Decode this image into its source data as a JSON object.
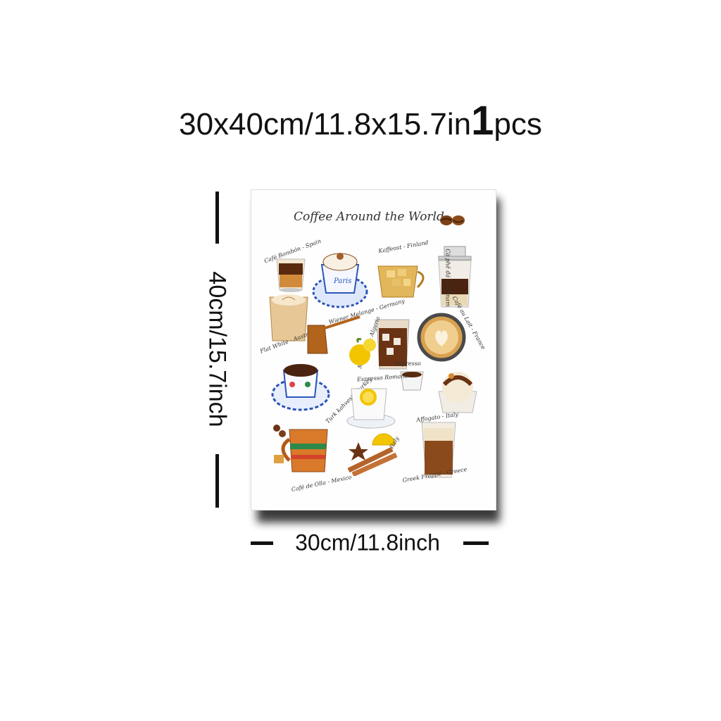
{
  "heading": {
    "size": "30x40cm/11.8x15.7in",
    "qty_number": "1",
    "qty_unit": "pcs"
  },
  "dimensions": {
    "height_label": "40cm/15.7inch",
    "width_label": "30cm/11.8inch"
  },
  "poster": {
    "title": "Coffee Around the World",
    "labels": {
      "cafe_bombon": "Café Bombón - Spain",
      "wiener_melange": "Wiener Melange - Germany",
      "kaffeost": "Kaffeost - Finland",
      "ca_phe_da": "Cà phê đá - Vietnam",
      "flat_white": "Flat White - Australia",
      "mazagran": "Mazagran - Algeria",
      "cafe_au_lait": "Café au Lait - France",
      "espresso": "Espresso",
      "espresso_romano": "Espresso Romano",
      "turk_kahvesi": "Turk kahvesi - Turkey",
      "affogato": "Affogato - Italy",
      "italy": "Italy",
      "cafe_de_olla": "Café de Olla - Mexico",
      "greek_frappe": "Greek Frappé - Greece"
    }
  },
  "colors": {
    "coffee_dark": "#4a2410",
    "coffee_mid": "#8a4a1c",
    "caramel": "#d98a2b",
    "porcelain_blue": "#2b55b8",
    "lemon": "#f2c500"
  }
}
